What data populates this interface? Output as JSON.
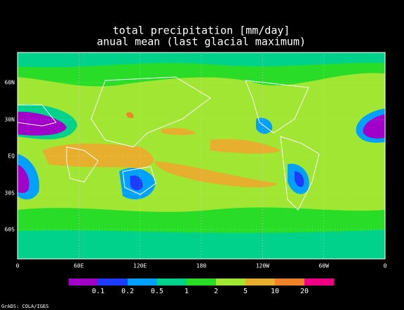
{
  "header": {
    "title": "total precipitation [mm/day]",
    "subtitle": "anual mean (last glacial maximum)"
  },
  "map": {
    "lat_labels": [
      "60N",
      "30N",
      "EQ",
      "30S",
      "60S"
    ],
    "lon_labels": [
      "0",
      "60E",
      "120E",
      "180",
      "120W",
      "60W",
      "0"
    ]
  },
  "colorbar": {
    "colors": [
      "#a000c8",
      "#1e3cff",
      "#00a0ff",
      "#00d28c",
      "#28dc28",
      "#a0e632",
      "#e6af2d",
      "#f08228",
      "#f00082"
    ],
    "labels": [
      "0.1",
      "0.2",
      "0.5",
      "1",
      "2",
      "5",
      "10",
      "20"
    ]
  },
  "footer": {
    "credit": "GrADS: COLA/IGES"
  }
}
